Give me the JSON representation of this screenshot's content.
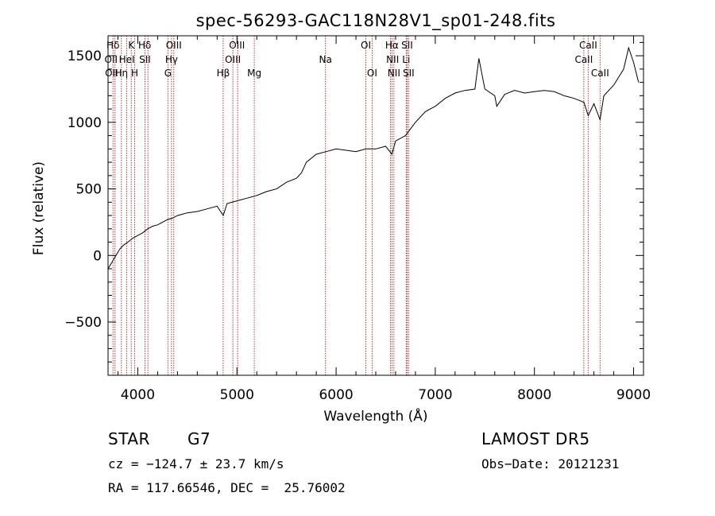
{
  "chart_data": {
    "type": "line",
    "title": "spec-56293-GAC118N28V1_sp01-248.fits",
    "xlabel": "Wavelength (Å)",
    "ylabel": "Flux (relative)",
    "xlim": [
      3700,
      9100
    ],
    "ylim": [
      -900,
      1650
    ],
    "xticks": [
      4000,
      5000,
      6000,
      7000,
      8000,
      9000
    ],
    "xtick_labels": [
      "4000",
      "5000",
      "6000",
      "7000",
      "8000",
      "9000"
    ],
    "yticks": [
      -500,
      0,
      500,
      1000,
      1500
    ],
    "ytick_labels": [
      "−500",
      "0",
      "500",
      "1000",
      "1500"
    ],
    "grid": false,
    "series": [
      {
        "color": "#000000",
        "x": [
          3700,
          3740,
          3780,
          3820,
          3860,
          3900,
          3950,
          4000,
          4050,
          4100,
          4150,
          4200,
          4250,
          4300,
          4350,
          4400,
          4450,
          4500,
          4600,
          4700,
          4800,
          4862,
          4900,
          5000,
          5100,
          5200,
          5300,
          5400,
          5500,
          5600,
          5650,
          5700,
          5800,
          5900,
          6000,
          6100,
          6200,
          6300,
          6400,
          6500,
          6563,
          6600,
          6700,
          6800,
          6900,
          7000,
          7100,
          7200,
          7300,
          7400,
          7440,
          7500,
          7600,
          7620,
          7700,
          7800,
          7900,
          8000,
          8100,
          8200,
          8300,
          8400,
          8500,
          8542,
          8600,
          8662,
          8700,
          8800,
          8900,
          8950,
          9000,
          9050
        ],
        "y": [
          -100,
          -50,
          0,
          50,
          80,
          100,
          130,
          150,
          170,
          200,
          220,
          230,
          250,
          270,
          280,
          300,
          310,
          320,
          330,
          350,
          370,
          300,
          390,
          410,
          430,
          450,
          480,
          500,
          550,
          580,
          620,
          700,
          760,
          780,
          800,
          790,
          780,
          800,
          800,
          820,
          760,
          860,
          900,
          1000,
          1080,
          1120,
          1180,
          1220,
          1240,
          1250,
          1480,
          1250,
          1200,
          1120,
          1210,
          1240,
          1220,
          1230,
          1240,
          1230,
          1200,
          1180,
          1150,
          1050,
          1140,
          1020,
          1200,
          1280,
          1400,
          1560,
          1450,
          1300
        ]
      }
    ],
    "line_markers": [
      {
        "x": 3750,
        "labels": [
          "Hδ",
          "OII"
        ]
      },
      {
        "x": 3770,
        "labels": [
          "OII"
        ]
      },
      {
        "x": 3835,
        "labels": [
          "Hη"
        ]
      },
      {
        "x": 3889,
        "labels": [
          "HeI"
        ]
      },
      {
        "x": 3934,
        "labels": [
          "K"
        ]
      },
      {
        "x": 3969,
        "labels": [
          "H"
        ]
      },
      {
        "x": 4072,
        "labels": [
          "SII"
        ]
      },
      {
        "x": 4102,
        "labels": [
          "Hδ"
        ]
      },
      {
        "x": 4304,
        "labels": [
          "G"
        ]
      },
      {
        "x": 4340,
        "labels": [
          "Hγ"
        ]
      },
      {
        "x": 4363,
        "labels": [
          "OIII"
        ]
      },
      {
        "x": 4861,
        "labels": [
          "Hβ"
        ]
      },
      {
        "x": 4959,
        "labels": [
          "OIII"
        ]
      },
      {
        "x": 5007,
        "labels": [
          "OIII"
        ]
      },
      {
        "x": 5175,
        "labels": [
          "Mg"
        ]
      },
      {
        "x": 5893,
        "labels": [
          "Na"
        ]
      },
      {
        "x": 6300,
        "labels": [
          "OI"
        ]
      },
      {
        "x": 6363,
        "labels": [
          "OI"
        ]
      },
      {
        "x": 6548,
        "labels": [
          "NII"
        ]
      },
      {
        "x": 6563,
        "labels": [
          "Hα"
        ]
      },
      {
        "x": 6583,
        "labels": [
          "NII"
        ]
      },
      {
        "x": 6707,
        "labels": [
          "Li"
        ]
      },
      {
        "x": 6716,
        "labels": [
          "SII"
        ]
      },
      {
        "x": 6731,
        "labels": [
          "SII"
        ]
      },
      {
        "x": 8498,
        "labels": [
          "CaII"
        ]
      },
      {
        "x": 8542,
        "labels": [
          "CaII"
        ]
      },
      {
        "x": 8662,
        "labels": [
          "CaII"
        ]
      }
    ],
    "marker_label_rows": [
      [
        {
          "x": 3750,
          "text": "Hδ"
        },
        {
          "x": 3935,
          "text": "K"
        },
        {
          "x": 4070,
          "text": "Hδ"
        },
        {
          "x": 4363,
          "text": "OIII"
        },
        {
          "x": 5000,
          "text": "OIII"
        },
        {
          "x": 6300,
          "text": "OI"
        },
        {
          "x": 6563,
          "text": "Hα"
        },
        {
          "x": 6716,
          "text": "SII"
        },
        {
          "x": 8542,
          "text": "CaII"
        }
      ],
      [
        {
          "x": 3730,
          "text": "OII"
        },
        {
          "x": 3889,
          "text": "HeI"
        },
        {
          "x": 4072,
          "text": "SII"
        },
        {
          "x": 4340,
          "text": "Hγ"
        },
        {
          "x": 4959,
          "text": "OIII"
        },
        {
          "x": 5893,
          "text": "Na"
        },
        {
          "x": 6570,
          "text": "NII"
        },
        {
          "x": 6707,
          "text": "Li"
        },
        {
          "x": 8498,
          "text": "CaII"
        }
      ],
      [
        {
          "x": 3735,
          "text": "OII"
        },
        {
          "x": 3835,
          "text": "Hη"
        },
        {
          "x": 3969,
          "text": "H"
        },
        {
          "x": 4304,
          "text": "G"
        },
        {
          "x": 4861,
          "text": "Hβ"
        },
        {
          "x": 5175,
          "text": "Mg"
        },
        {
          "x": 6363,
          "text": "OI"
        },
        {
          "x": 6583,
          "text": "NII"
        },
        {
          "x": 6731,
          "text": "SII"
        },
        {
          "x": 8662,
          "text": "CaII"
        }
      ]
    ]
  },
  "info": {
    "class_label": "STAR",
    "subclass": "G7",
    "survey": "LAMOST DR5",
    "velocity": "cz = −124.7 ± 23.7 km/s",
    "obs_date": "Obs−Date: 20121231",
    "coords": "RA = 117.66546, DEC =  25.76002"
  },
  "colors": {
    "spectrum": "#000000",
    "marker_line": "#b22222",
    "axes": "#000000"
  }
}
